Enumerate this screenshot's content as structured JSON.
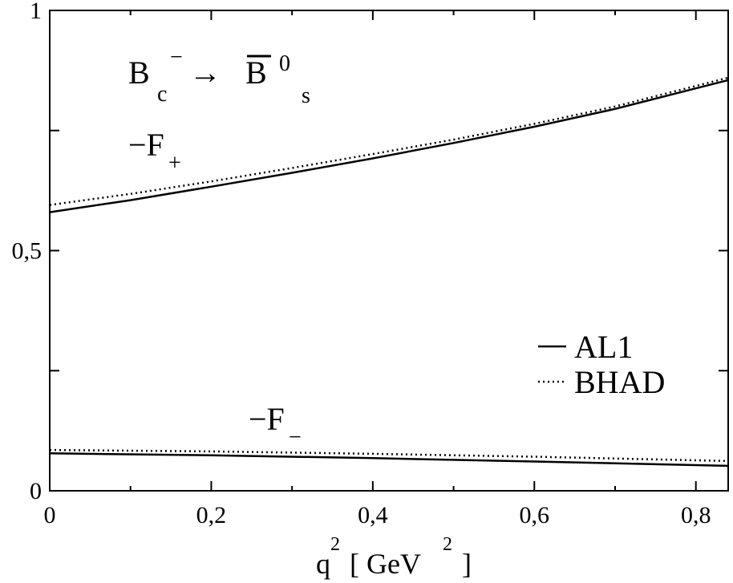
{
  "chart_data": {
    "type": "line",
    "title": "",
    "xlabel": "q² [ GeV² ]",
    "ylabel": "",
    "xlim": [
      0,
      0.84
    ],
    "ylim": [
      0,
      1
    ],
    "x_ticks": [
      {
        "value": 0,
        "label": "0"
      },
      {
        "value": 0.2,
        "label": "0,2"
      },
      {
        "value": 0.4,
        "label": "0,4"
      },
      {
        "value": 0.6,
        "label": "0,6"
      },
      {
        "value": 0.8,
        "label": "0,8"
      }
    ],
    "y_ticks": [
      {
        "value": 0,
        "label": "0"
      },
      {
        "value": 0.25,
        "label": ""
      },
      {
        "value": 0.5,
        "label": "0,5"
      },
      {
        "value": 0.75,
        "label": ""
      },
      {
        "value": 1,
        "label": "1"
      }
    ],
    "grid": false,
    "legend_position": "bottom-right",
    "series": [
      {
        "name": "AL1",
        "curve": "F+",
        "style": "solid",
        "x": [
          0,
          0.1,
          0.2,
          0.3,
          0.4,
          0.5,
          0.6,
          0.7,
          0.84
        ],
        "y": [
          0.58,
          0.605,
          0.633,
          0.662,
          0.692,
          0.724,
          0.758,
          0.795,
          0.855
        ]
      },
      {
        "name": "BHAD",
        "curve": "F+",
        "style": "dotted",
        "x": [
          0,
          0.1,
          0.2,
          0.3,
          0.4,
          0.5,
          0.6,
          0.7,
          0.84
        ],
        "y": [
          0.595,
          0.618,
          0.644,
          0.672,
          0.701,
          0.731,
          0.764,
          0.8,
          0.86
        ]
      },
      {
        "name": "AL1",
        "curve": "F-",
        "style": "solid",
        "x": [
          0,
          0.2,
          0.4,
          0.6,
          0.84
        ],
        "y": [
          0.078,
          0.074,
          0.068,
          0.061,
          0.052
        ]
      },
      {
        "name": "BHAD",
        "curve": "F-",
        "style": "dotted",
        "x": [
          0,
          0.2,
          0.4,
          0.6,
          0.84
        ],
        "y": [
          0.085,
          0.082,
          0.077,
          0.071,
          0.062
        ]
      }
    ],
    "legend": [
      {
        "label": "AL1",
        "style": "solid"
      },
      {
        "label": "BHAD",
        "style": "dotted"
      }
    ],
    "annotations": {
      "process": {
        "B": "B",
        "c": "c",
        "minus": "−",
        "arrow": "→",
        "Bbar": "B",
        "zero": "0",
        "s": "s"
      },
      "fplus": {
        "label": "−F",
        "sub": "+"
      },
      "fminus": {
        "label": "−F",
        "sub": "−"
      }
    },
    "xlabel_parts": {
      "q": "q",
      "sup1": "2",
      "mid": "[ GeV",
      "sup2": "2",
      "end": "]"
    }
  }
}
